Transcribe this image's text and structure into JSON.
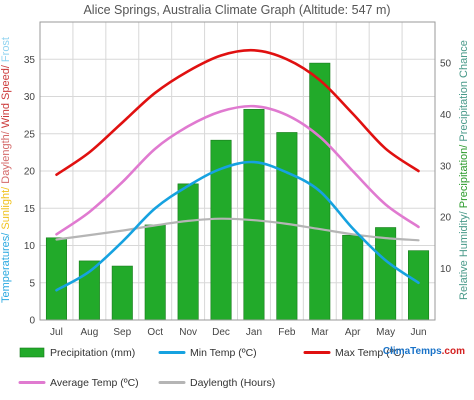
{
  "chart_data": {
    "type": "bar",
    "title": "Alice Springs, Australia Climate Graph (Altitude: 547 m)",
    "categories": [
      "Jul",
      "Aug",
      "Sep",
      "Oct",
      "Nov",
      "Dec",
      "Jan",
      "Feb",
      "Mar",
      "Apr",
      "May",
      "Jun"
    ],
    "left_axis": {
      "range": [
        0,
        40
      ],
      "ticks": [
        "0",
        "5",
        "10",
        "15",
        "20",
        "25",
        "30",
        "35"
      ],
      "label_parts": [
        {
          "text": "Temperatures/ ",
          "color": "#29a8e0"
        },
        {
          "text": "Sunlight/ ",
          "color": "#f0c21e"
        },
        {
          "text": "Daylength/ ",
          "color": "#d46a6a"
        },
        {
          "text": "Wind Speed/ ",
          "color": "#cc3b3b"
        },
        {
          "text": "Frost",
          "color": "#8fd3f0"
        }
      ]
    },
    "right_axis": {
      "range": [
        0,
        58
      ],
      "ticks": [
        "10",
        "20",
        "30",
        "40",
        "50"
      ],
      "label_parts": [
        {
          "text": "Relative Humidity/ ",
          "color": "#4a9a8a"
        },
        {
          "text": "Precipitation/ ",
          "color": "#2a9a2a"
        },
        {
          "text": "Precipitation Chance",
          "color": "#4a9a8a"
        }
      ]
    },
    "grid": true,
    "series": [
      {
        "name": "Precipitation (mm)",
        "kind": "bar",
        "axis": "right",
        "color": "#22aa2a",
        "values": [
          16,
          11.5,
          10.5,
          18.5,
          26.5,
          35,
          41,
          36.5,
          50,
          16.5,
          18,
          13.5
        ]
      },
      {
        "name": "Min Temp (ºC)",
        "kind": "line",
        "axis": "left",
        "color": "#16a2e0",
        "values": [
          4,
          6.5,
          10.5,
          15,
          18,
          20.3,
          21.2,
          19.8,
          17.3,
          12.3,
          8,
          5
        ]
      },
      {
        "name": "Max Temp (ºC)",
        "kind": "line",
        "axis": "left",
        "color": "#e01010",
        "values": [
          19.5,
          22.5,
          26.5,
          30.5,
          33.4,
          35.5,
          36.2,
          35,
          32.2,
          27.7,
          23,
          20
        ]
      },
      {
        "name": "Average Temp (ºC)",
        "kind": "line",
        "axis": "left",
        "color": "#e07ad0",
        "values": [
          11.5,
          14.5,
          18.5,
          23,
          26,
          28,
          28.7,
          27.5,
          24.6,
          20,
          15.5,
          12.5
        ]
      },
      {
        "name": "Daylength (Hours)",
        "kind": "line",
        "axis": "left",
        "color": "#b5b5b5",
        "values": [
          10.8,
          11.4,
          12,
          12.7,
          13.3,
          13.6,
          13.4,
          12.9,
          12.2,
          11.5,
          11,
          10.7
        ]
      }
    ],
    "legend_position": "bottom"
  },
  "brand": {
    "text": "ClimaTemps.com",
    "color_main": "#1a73c8",
    "color_accent": "#d32020"
  },
  "colors": {
    "grid": "#d8d8d8",
    "frame": "#9a9a9a"
  }
}
